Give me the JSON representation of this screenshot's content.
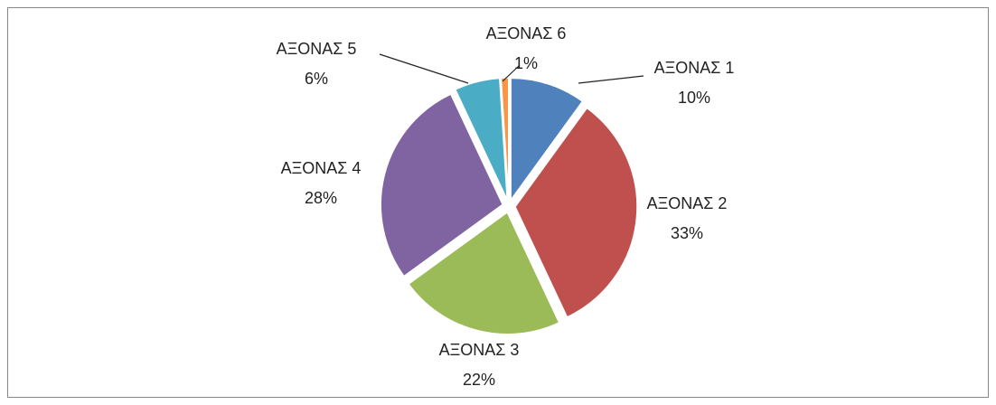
{
  "chart_data": {
    "type": "pie",
    "categories": [
      "ΑΞΟΝΑΣ 1",
      "ΑΞΟΝΑΣ 2",
      "ΑΞΟΝΑΣ 3",
      "ΑΞΟΝΑΣ 4",
      "ΑΞΟΝΑΣ 5",
      "ΑΞΟΝΑΣ 6"
    ],
    "values": [
      10,
      33,
      22,
      28,
      6,
      1
    ],
    "value_labels": [
      "10%",
      "33%",
      "22%",
      "28%",
      "6%",
      "1%"
    ],
    "colors": [
      "#4f81bd",
      "#c0504d",
      "#9bbb59",
      "#8064a2",
      "#4bacc6",
      "#f79646"
    ]
  }
}
